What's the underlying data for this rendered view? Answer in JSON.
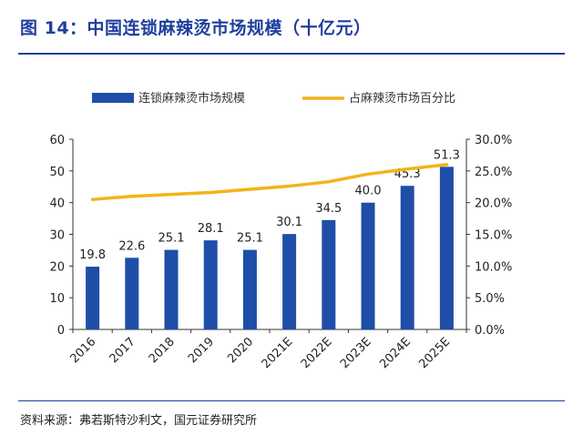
{
  "header": {
    "title": "图 14：中国连锁麻辣烫市场规模（十亿元）"
  },
  "footer": {
    "source": "资料来源：弗若斯特沙利文，国元证券研究所"
  },
  "colors": {
    "bar": "#1f4ea8",
    "line": "#f2b418",
    "title": "#1f3f9c"
  },
  "chart_data": {
    "type": "bar",
    "categories": [
      "2016",
      "2017",
      "2018",
      "2019",
      "2020",
      "2021E",
      "2022E",
      "2023E",
      "2024E",
      "2025E"
    ],
    "series": [
      {
        "name": "连锁麻辣烫市场规模",
        "type": "bar",
        "axis": "left",
        "values": [
          19.8,
          22.6,
          25.1,
          28.1,
          25.1,
          30.1,
          34.5,
          40.0,
          45.3,
          51.3
        ],
        "labels": [
          "19.8",
          "22.6",
          "25.1",
          "28.1",
          "25.1",
          "30.1",
          "34.5",
          "40.0",
          "45.3",
          "51.3"
        ]
      },
      {
        "name": "占麻辣烫市场百分比",
        "type": "line",
        "axis": "right",
        "values": [
          20.5,
          21.0,
          21.3,
          21.6,
          22.1,
          22.6,
          23.3,
          24.5,
          25.3,
          26.0
        ]
      }
    ],
    "ylim": [
      0,
      60
    ],
    "y2lim": [
      0,
      30
    ],
    "yticks": [
      "0",
      "10",
      "20",
      "30",
      "40",
      "50",
      "60"
    ],
    "y2ticks": [
      "0.0%",
      "5.0%",
      "10.0%",
      "15.0%",
      "20.0%",
      "25.0%",
      "30.0%"
    ],
    "legend": "top",
    "grid": false
  }
}
